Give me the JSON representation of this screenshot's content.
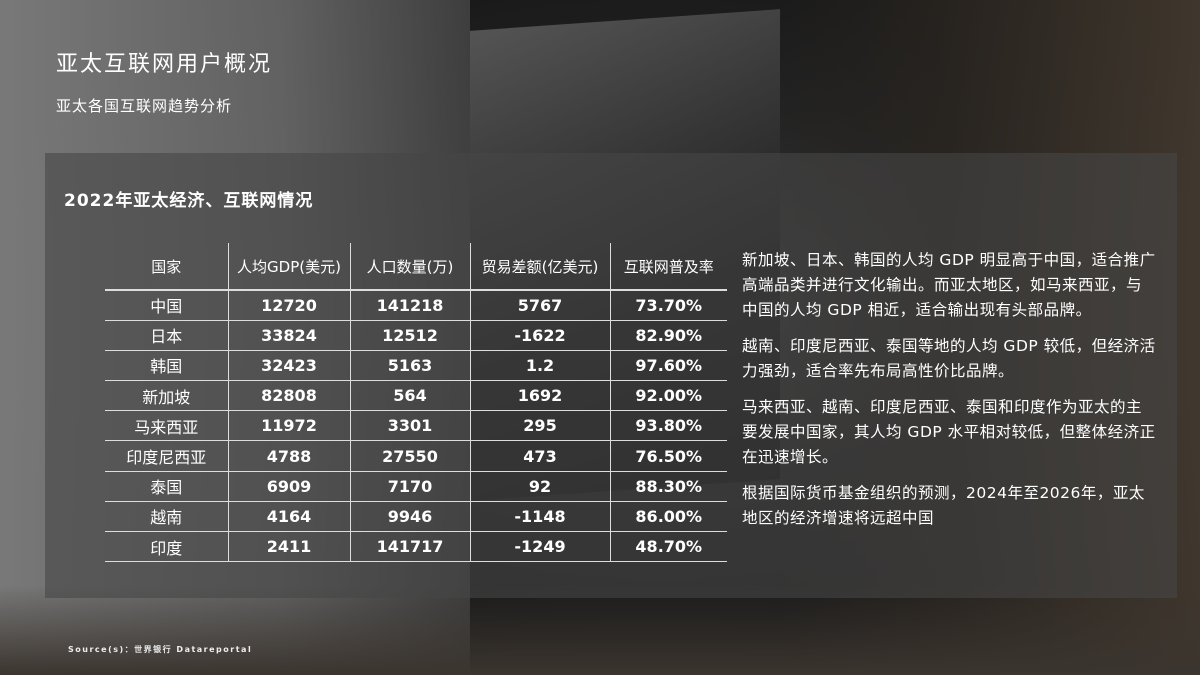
{
  "header": {
    "title": "亚太互联网用户概况",
    "subtitle": "亚太各国互联网趋势分析"
  },
  "panel": {
    "title": "2022年亚太经济、互联网情况"
  },
  "table": {
    "columns": [
      "国家",
      "人均GDP(美元)",
      "人口数量(万)",
      "贸易差额(亿美元)",
      "互联网普及率"
    ],
    "rows": [
      [
        "中国",
        "12720",
        "141218",
        "5767",
        "73.70%"
      ],
      [
        "日本",
        "33824",
        "12512",
        "-1622",
        "82.90%"
      ],
      [
        "韩国",
        "32423",
        "5163",
        "1.2",
        "97.60%"
      ],
      [
        "新加坡",
        "82808",
        "564",
        "1692",
        "92.00%"
      ],
      [
        "马来西亚",
        "11972",
        "3301",
        "295",
        "93.80%"
      ],
      [
        "印度尼西亚",
        "4788",
        "27550",
        "473",
        "76.50%"
      ],
      [
        "泰国",
        "6909",
        "7170",
        "92",
        "88.30%"
      ],
      [
        "越南",
        "4164",
        "9946",
        "-1148",
        "86.00%"
      ],
      [
        "印度",
        "2411",
        "141717",
        "-1249",
        "48.70%"
      ]
    ]
  },
  "notes": [
    "新加坡、日本、韩国的人均 GDP 明显高于中国，适合推广高端品类并进行文化输出。而亚太地区，如马来西亚，与中国的人均 GDP 相近，适合输出现有头部品牌。",
    "越南、印度尼西亚、泰国等地的人均 GDP 较低，但经济活力强劲，适合率先布局高性价比品牌。",
    "马来西亚、越南、印度尼西亚、泰国和印度作为亚太的主要发展中国家，其人均 GDP 水平相对较低，但整体经济正在迅速增长。",
    "根据国际货币基金组织的预测，2024年至2026年，亚太地区的经济增速将远超中国"
  ],
  "source": "Source(s)：世界银行 Datareportal"
}
